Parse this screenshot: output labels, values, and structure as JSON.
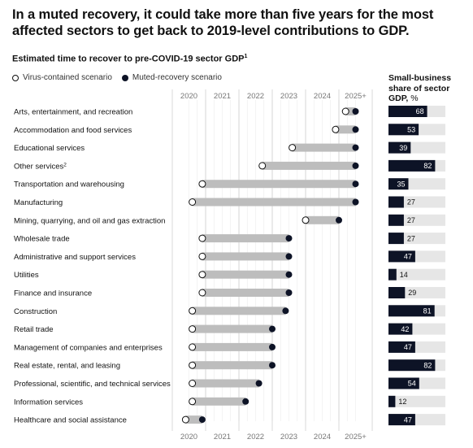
{
  "title": "In a muted recovery, it could take more than five years for the most affected sectors to get back to 2019-level contributions to GDP.",
  "subtitle": "Estimated time to recover to pre-COVID-19 sector GDP",
  "subtitle_note": "1",
  "legend": {
    "open": "Virus-contained scenario",
    "filled": "Muted-recovery scenario"
  },
  "small_business": {
    "title": "Small-business share of sector GDP,",
    "unit": "%"
  },
  "colors": {
    "dark": "#0d1326",
    "bar": "#bdbdbd",
    "track": "#e6e6e6",
    "grid": "#cfcfcf"
  },
  "chart_data": {
    "type": "dumbbell",
    "x_ticks": [
      "2020",
      "2021",
      "2022",
      "2023",
      "2024",
      "2025+"
    ],
    "xlim": [
      2020,
      2025
    ],
    "series": [
      {
        "name": "Virus-contained scenario",
        "marker": "open"
      },
      {
        "name": "Muted-recovery scenario",
        "marker": "filled"
      }
    ],
    "sectors": [
      {
        "label": "Arts, entertainment, and recreation",
        "note": "",
        "contained": 2024.7,
        "muted": 2025.0,
        "small_business_share": 68
      },
      {
        "label": "Accommodation and food services",
        "note": "",
        "contained": 2024.4,
        "muted": 2025.0,
        "small_business_share": 53
      },
      {
        "label": "Educational services",
        "note": "",
        "contained": 2023.1,
        "muted": 2025.0,
        "small_business_share": 39
      },
      {
        "label": "Other services",
        "note": "2",
        "contained": 2022.2,
        "muted": 2025.0,
        "small_business_share": 82
      },
      {
        "label": "Transportation and warehousing",
        "note": "",
        "contained": 2020.4,
        "muted": 2025.0,
        "small_business_share": 35
      },
      {
        "label": "Manufacturing",
        "note": "",
        "contained": 2020.1,
        "muted": 2025.0,
        "small_business_share": 27
      },
      {
        "label": "Mining, quarrying, and oil and gas extraction",
        "note": "",
        "contained": 2023.5,
        "muted": 2024.5,
        "small_business_share": 27
      },
      {
        "label": "Wholesale trade",
        "note": "",
        "contained": 2020.4,
        "muted": 2023.0,
        "small_business_share": 27
      },
      {
        "label": "Administrative and support services",
        "note": "",
        "contained": 2020.4,
        "muted": 2023.0,
        "small_business_share": 47
      },
      {
        "label": "Utilities",
        "note": "",
        "contained": 2020.4,
        "muted": 2023.0,
        "small_business_share": 14
      },
      {
        "label": "Finance and insurance",
        "note": "",
        "contained": 2020.4,
        "muted": 2023.0,
        "small_business_share": 29
      },
      {
        "label": "Construction",
        "note": "",
        "contained": 2020.1,
        "muted": 2022.9,
        "small_business_share": 81
      },
      {
        "label": "Retail trade",
        "note": "",
        "contained": 2020.1,
        "muted": 2022.5,
        "small_business_share": 42
      },
      {
        "label": "Management of companies and enterprises",
        "note": "",
        "contained": 2020.1,
        "muted": 2022.5,
        "small_business_share": 47
      },
      {
        "label": "Real estate, rental, and leasing",
        "note": "",
        "contained": 2020.1,
        "muted": 2022.5,
        "small_business_share": 82
      },
      {
        "label": "Professional, scientific, and technical services",
        "note": "",
        "contained": 2020.1,
        "muted": 2022.1,
        "small_business_share": 54
      },
      {
        "label": "Information services",
        "note": "",
        "contained": 2020.1,
        "muted": 2021.7,
        "small_business_share": 12
      },
      {
        "label": "Healthcare and social assistance",
        "note": "",
        "contained": 2019.9,
        "muted": 2020.4,
        "small_business_share": 47
      }
    ]
  }
}
